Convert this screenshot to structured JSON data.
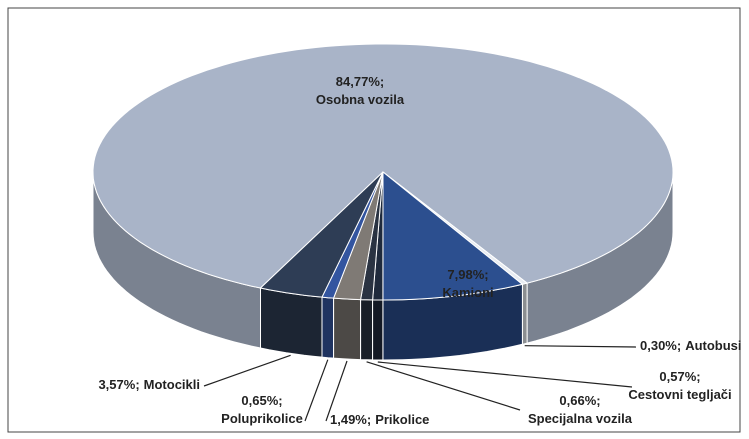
{
  "chart_data": {
    "type": "pie3d",
    "categories": [
      "Osobna vozila",
      "Autobusi",
      "Kamioni",
      "Cestovni tegljači",
      "Specijalna vozila",
      "Prikolice",
      "Poluprikolice",
      "Motocikli"
    ],
    "values": [
      84.77,
      0.3,
      7.98,
      0.57,
      0.66,
      1.49,
      0.65,
      3.57
    ],
    "value_labels": [
      "84,77%;",
      "0,30%;",
      "7,98%;",
      "0,57%;",
      "0,66%;",
      "1,49%;",
      "0,65%;",
      "3,57%;"
    ],
    "colors": [
      "#a9b4c8",
      "#e8ecf2",
      "#2c4f8f",
      "#1f2a3c",
      "#2a3342",
      "#7f7a75",
      "#3355a0",
      "#2e3d55"
    ]
  }
}
